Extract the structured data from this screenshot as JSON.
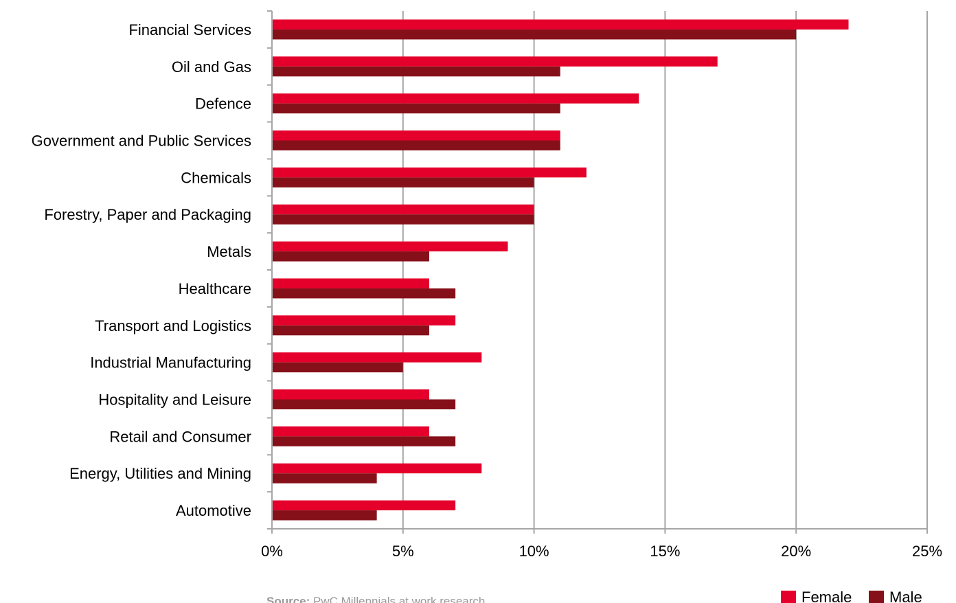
{
  "chart_data": {
    "type": "bar",
    "orientation": "horizontal",
    "categories": [
      "Financial Services",
      "Oil and Gas",
      "Defence",
      "Government and Public Services",
      "Chemicals",
      "Forestry, Paper and Packaging",
      "Metals",
      "Healthcare",
      "Transport and Logistics",
      "Industrial Manufacturing",
      "Hospitality and Leisure",
      "Retail and Consumer",
      "Energy, Utilities and Mining",
      "Automotive"
    ],
    "series": [
      {
        "name": "Female",
        "color": "#e4002b",
        "values": [
          22,
          17,
          14,
          11,
          12,
          10,
          9,
          6,
          7,
          8,
          6,
          6,
          8,
          7
        ]
      },
      {
        "name": "Male",
        "color": "#861019",
        "values": [
          20,
          11,
          11,
          11,
          10,
          10,
          6,
          7,
          6,
          5,
          7,
          7,
          4,
          4
        ]
      }
    ],
    "xlim": [
      0,
      25
    ],
    "xticks": [
      0,
      5,
      10,
      15,
      20,
      25
    ],
    "xtick_labels": [
      "0%",
      "5%",
      "10%",
      "15%",
      "20%",
      "25%"
    ],
    "grid": "vertical",
    "legend_position": "bottom-right",
    "title": "",
    "xlabel": "",
    "ylabel": ""
  },
  "source": {
    "prefix": "Source:",
    "text": " PwC Millennials at work research"
  }
}
